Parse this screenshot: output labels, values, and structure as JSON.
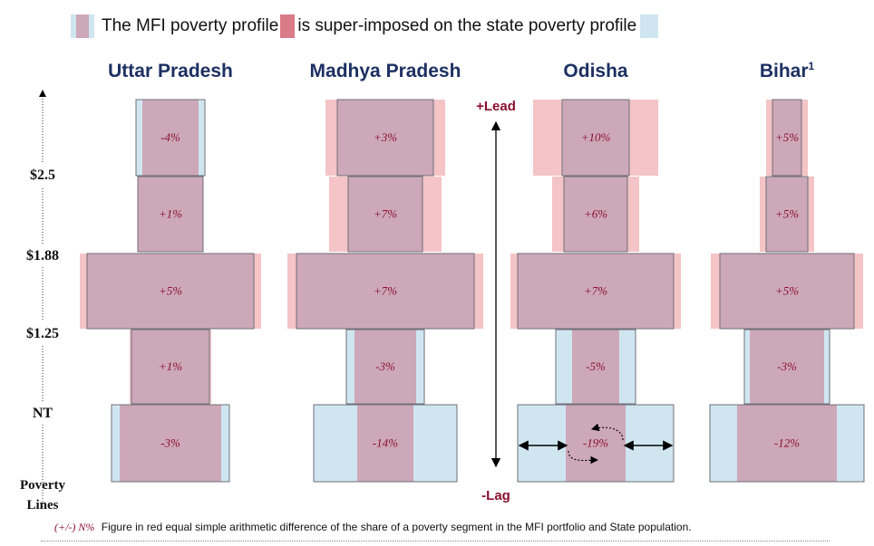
{
  "legend": {
    "text1": "The MFI poverty profile",
    "text2": "is super-imposed on the state poverty profile"
  },
  "poverty_lines": {
    "labels": [
      "$2.5",
      "$1.88",
      "$1.25",
      "NT"
    ],
    "caption_line1": "Poverty",
    "caption_line2": "Lines"
  },
  "axis": {
    "lead": "+Lead",
    "lag": "-Lag"
  },
  "states": [
    {
      "name": "Uttar Pradesh",
      "sup": "",
      "diffs": [
        "-4%",
        "+1%",
        "+5%",
        "+1%",
        "-3%"
      ],
      "state_widths": [
        76,
        72,
        184,
        86,
        130
      ],
      "mfi_widths": [
        62,
        72,
        200,
        90,
        112
      ]
    },
    {
      "name": "Madhya Pradesh",
      "sup": "",
      "diffs": [
        "+3%",
        "+7%",
        "+7%",
        "-3%",
        "-14%"
      ],
      "state_widths": [
        106,
        82,
        196,
        86,
        158
      ],
      "mfi_widths": [
        132,
        124,
        216,
        68,
        62
      ]
    },
    {
      "name": "Odisha",
      "sup": "",
      "diffs": [
        "+10%",
        "+6%",
        "+7%",
        "-5%",
        "-19%"
      ],
      "state_widths": [
        74,
        70,
        172,
        88,
        172
      ],
      "mfi_widths": [
        138,
        96,
        188,
        52,
        66
      ]
    },
    {
      "name": "Bihar",
      "sup": "1",
      "diffs": [
        "+5%",
        "+5%",
        "+5%",
        "-3%",
        "-12%"
      ],
      "state_widths": [
        32,
        46,
        148,
        94,
        170
      ],
      "mfi_widths": [
        46,
        60,
        168,
        82,
        110
      ]
    }
  ],
  "footnote": {
    "note": "(+/-) N%",
    "text": "Figure in red equal simple arithmetic difference of the share of a poverty segment in the MFI portfolio and State population."
  },
  "colors": {
    "state": "#cfe6f1",
    "mfi": "#f4c4c6",
    "overlap": "#cda8b8",
    "pct": "#8a1030",
    "title": "#1d3062",
    "lead": "#8a1030"
  }
}
